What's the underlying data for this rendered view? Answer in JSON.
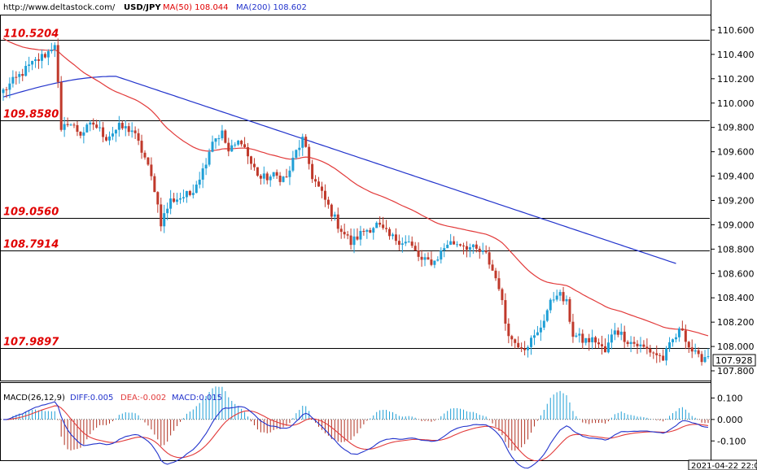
{
  "header": {
    "site": "http://www.deltastock.com/",
    "symbol": "USD/JPY",
    "ma50": "MA(50)  108.044",
    "ma200": "MA(200)  108.602"
  },
  "colors": {
    "bull": "#1f9fd6",
    "bear": "#c0392b",
    "ma50": "#e23a3a",
    "ma200": "#2233cc",
    "level_text": "#e00000",
    "diff": "#2233cc",
    "dea": "#e23a3a",
    "hist_pos": "#1f9fd6",
    "hist_neg": "#b03020"
  },
  "levels": [
    {
      "label": "110.5204",
      "value": 110.5204
    },
    {
      "label": "109.8580",
      "value": 109.858
    },
    {
      "label": "109.0560",
      "value": 109.056
    },
    {
      "label": "108.7914",
      "value": 108.7914
    },
    {
      "label": "107.9897",
      "value": 107.9897
    }
  ],
  "price_ticks": [
    "110.600",
    "110.400",
    "110.200",
    "110.000",
    "109.800",
    "109.600",
    "109.400",
    "109.200",
    "109.000",
    "108.800",
    "108.600",
    "108.400",
    "108.200",
    "108.000",
    "107.800"
  ],
  "current_price": "107.928",
  "macd": {
    "label": "MACD(26,12,9)",
    "diff": "DIFF:0.005",
    "dea": "DEA:-0.002",
    "macd": "MACD:0.015",
    "ticks": [
      "0.100",
      "0.000",
      "-0.100"
    ]
  },
  "date_label": "2021-04-22 22:0",
  "chart_data": {
    "type": "candlestick",
    "symbol": "USD/JPY",
    "ylim": [
      107.72,
      110.72
    ],
    "price_keypoints": [
      [
        0,
        110.1
      ],
      [
        8,
        110.3
      ],
      [
        14,
        110.42
      ],
      [
        16,
        110.5
      ],
      [
        17,
        110.15
      ],
      [
        18,
        109.75
      ],
      [
        20,
        109.85
      ],
      [
        24,
        109.75
      ],
      [
        28,
        109.83
      ],
      [
        32,
        109.72
      ],
      [
        36,
        109.8
      ],
      [
        40,
        109.78
      ],
      [
        44,
        109.55
      ],
      [
        47,
        109.3
      ],
      [
        49,
        109.02
      ],
      [
        52,
        109.2
      ],
      [
        58,
        109.25
      ],
      [
        62,
        109.45
      ],
      [
        65,
        109.7
      ],
      [
        68,
        109.75
      ],
      [
        70,
        109.6
      ],
      [
        74,
        109.7
      ],
      [
        77,
        109.5
      ],
      [
        80,
        109.38
      ],
      [
        84,
        109.4
      ],
      [
        88,
        109.38
      ],
      [
        91,
        109.6
      ],
      [
        93,
        109.7
      ],
      [
        96,
        109.4
      ],
      [
        100,
        109.2
      ],
      [
        104,
        109.0
      ],
      [
        108,
        108.85
      ],
      [
        112,
        108.95
      ],
      [
        116,
        109.0
      ],
      [
        120,
        108.9
      ],
      [
        126,
        108.85
      ],
      [
        130,
        108.7
      ],
      [
        134,
        108.7
      ],
      [
        138,
        108.85
      ],
      [
        142,
        108.85
      ],
      [
        146,
        108.8
      ],
      [
        150,
        108.75
      ],
      [
        154,
        108.5
      ],
      [
        156,
        108.2
      ],
      [
        158,
        108.05
      ],
      [
        162,
        108.0
      ],
      [
        166,
        108.1
      ],
      [
        169,
        108.3
      ],
      [
        172,
        108.45
      ],
      [
        175,
        108.35
      ],
      [
        177,
        108.1
      ],
      [
        180,
        108.05
      ],
      [
        184,
        108.05
      ],
      [
        187,
        107.95
      ],
      [
        190,
        108.15
      ],
      [
        194,
        108.05
      ],
      [
        198,
        108.0
      ],
      [
        202,
        107.95
      ],
      [
        205,
        107.9
      ],
      [
        208,
        108.05
      ],
      [
        211,
        108.15
      ],
      [
        213,
        108.0
      ],
      [
        216,
        107.9
      ],
      [
        219,
        107.93
      ]
    ],
    "candle_count": 220,
    "ma50_end": 108.044,
    "ma200_end": 108.602,
    "macd_ylim": [
      -0.19,
      0.17
    ]
  }
}
